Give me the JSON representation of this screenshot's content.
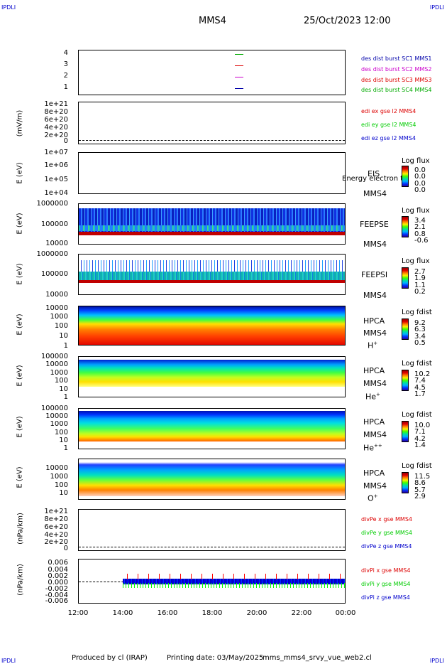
{
  "corners": {
    "tl": "IPDLI",
    "tr": "IPDLI",
    "bl": "IPDLI",
    "br": "IPDLI"
  },
  "header": {
    "spacecraft": "MMS4",
    "datetime": "25/Oct/2023 12:00"
  },
  "colors": {
    "mms1": "#0000aa",
    "mms2": "#cc00cc",
    "mms3": "#dd0000",
    "mms4": "#00aa00",
    "x": "#dd0000",
    "y": "#00cc00",
    "z": "#0000cc"
  },
  "panels": {
    "p1": {
      "ticks": [
        "4",
        "3",
        "2",
        "1"
      ],
      "legend": [
        "des dist burst SC1 MMS1",
        "des dist burst SC2 MMS2",
        "des dist burst SC3 MMS3",
        "des dist burst SC4 MMS4"
      ]
    },
    "p2": {
      "ylabel": "(mV/m)",
      "ticks": [
        "1e+21",
        "8e+20",
        "6e+20",
        "4e+20",
        "2e+20",
        "0"
      ],
      "legend": [
        "edi ex gse l2 MMS4",
        "edi ey gse l2 MMS4",
        "edi ez gse l2 MMS4"
      ]
    },
    "p3": {
      "ylabel": "E (eV)",
      "ticks": [
        "1e+07",
        "1e+06",
        "1e+05",
        "1e+04"
      ],
      "inst": "EIS",
      "sc": "MMS4",
      "overlap": "Energy electron to",
      "cbtitle": "Log flux",
      "cbvals": [
        "0.0",
        "0.0",
        "0.0",
        "0.0"
      ]
    },
    "p4": {
      "ylabel": "E (eV)",
      "ticks": [
        "1000000",
        "100000",
        "10000"
      ],
      "inst": "FEEPSE",
      "sc": "MMS4",
      "cbtitle": "Log flux",
      "cbvals": [
        "3.4",
        "2.1",
        "0.8",
        "-0.6"
      ]
    },
    "p5": {
      "ylabel": "E (eV)",
      "ticks": [
        "1000000",
        "100000",
        "10000"
      ],
      "inst": "FEEPSI",
      "sc": "MMS4",
      "cbtitle": "Log flux",
      "cbvals": [
        "2.7",
        "1.9",
        "1.1",
        "0.2"
      ]
    },
    "p6": {
      "ylabel": "E (eV)",
      "ticks": [
        "10000",
        "1000",
        "100",
        "10",
        "1"
      ],
      "inst": "HPCA",
      "sc": "MMS4",
      "species": "H",
      "charge": "+",
      "cbtitle": "Log fdist",
      "cbvals": [
        "9.2",
        "6.3",
        "3.4",
        "0.5"
      ]
    },
    "p7": {
      "ylabel": "E (eV)",
      "ticks": [
        "100000",
        "10000",
        "1000",
        "100",
        "10",
        "1"
      ],
      "inst": "HPCA",
      "sc": "MMS4",
      "species": "He",
      "charge": "+",
      "cbtitle": "Log fdist",
      "cbvals": [
        "10.2",
        "7.4",
        "4.5",
        "1.7"
      ]
    },
    "p8": {
      "ylabel": "E (eV)",
      "ticks": [
        "100000",
        "10000",
        "1000",
        "100",
        "10",
        "1"
      ],
      "inst": "HPCA",
      "sc": "MMS4",
      "species": "He",
      "charge": "++",
      "cbtitle": "Log fdist",
      "cbvals": [
        "10.0",
        "7.1",
        "4.2",
        "1.4"
      ]
    },
    "p9": {
      "ylabel": "E (eV)",
      "ticks": [
        "10000",
        "1000",
        "100",
        "10"
      ],
      "inst": "HPCA",
      "sc": "MMS4",
      "species": "O",
      "charge": "+",
      "cbtitle": "Log fdist",
      "cbvals": [
        "11.5",
        "8.6",
        "5.7",
        "2.9"
      ]
    },
    "p10": {
      "ylabel": "(nPa/km)",
      "ticks": [
        "1e+21",
        "8e+20",
        "6e+20",
        "4e+20",
        "2e+20",
        "0"
      ],
      "legend": [
        "divPe x gse MMS4",
        "divPe y gse MMS4",
        "divPe z gse MMS4"
      ]
    },
    "p11": {
      "ylabel": "(nPa/km)",
      "ticks": [
        "0.006",
        "0.004",
        "0.002",
        "0.000",
        "-0.002",
        "-0.004",
        "-0.006"
      ],
      "legend": [
        "divPi x gse MMS4",
        "divPi y gse MMS4",
        "divPi z gse MMS4"
      ]
    }
  },
  "xaxis": {
    "labels": [
      "12:00",
      "14:00",
      "16:00",
      "18:00",
      "20:00",
      "22:00",
      "00:00"
    ]
  },
  "footer": {
    "produced": "Produced by cl (IRAP)",
    "printed": "Printing date: 03/May/2025",
    "script": "mms_mms4_srvy_vue_web2.cl"
  },
  "chart_data": {
    "type": "spectrogram",
    "title": "MMS4",
    "xlabel": "",
    "x": [
      "12:00",
      "14:00",
      "16:00",
      "18:00",
      "20:00",
      "22:00",
      "00:00"
    ],
    "panels": [
      {
        "name": "des dist burst",
        "type": "line",
        "ylim": [
          0.5,
          4.5
        ]
      },
      {
        "name": "edi e gse l2",
        "ylabel": "(mV/m)",
        "type": "line",
        "ylim": [
          0,
          1e+21
        ]
      },
      {
        "name": "EIS",
        "ylabel": "E (eV)",
        "type": "heatmap",
        "ylim": [
          10000.0,
          10000000.0
        ],
        "scale": "log",
        "colorbar": [
          0.0,
          0.0,
          0.0,
          0.0
        ]
      },
      {
        "name": "FEEPSE",
        "ylabel": "E (eV)",
        "type": "heatmap",
        "ylim": [
          10000.0,
          1000000.0
        ],
        "scale": "log",
        "colorbar": [
          3.4,
          2.1,
          0.8,
          -0.6
        ]
      },
      {
        "name": "FEEPSI",
        "ylabel": "E (eV)",
        "type": "heatmap",
        "ylim": [
          10000.0,
          1000000.0
        ],
        "scale": "log",
        "colorbar": [
          2.7,
          1.9,
          1.1,
          0.2
        ]
      },
      {
        "name": "HPCA H+",
        "ylabel": "E (eV)",
        "type": "heatmap",
        "ylim": [
          1,
          10000.0
        ],
        "scale": "log",
        "colorbar": [
          9.2,
          6.3,
          3.4,
          0.5
        ]
      },
      {
        "name": "HPCA He+",
        "ylabel": "E (eV)",
        "type": "heatmap",
        "ylim": [
          1,
          100000.0
        ],
        "scale": "log",
        "colorbar": [
          10.2,
          7.4,
          4.5,
          1.7
        ]
      },
      {
        "name": "HPCA He++",
        "ylabel": "E (eV)",
        "type": "heatmap",
        "ylim": [
          1,
          100000.0
        ],
        "scale": "log",
        "colorbar": [
          10.0,
          7.1,
          4.2,
          1.4
        ]
      },
      {
        "name": "HPCA O+",
        "ylabel": "E (eV)",
        "type": "heatmap",
        "ylim": [
          1,
          100000.0
        ],
        "scale": "log",
        "colorbar": [
          11.5,
          8.6,
          5.7,
          2.9
        ]
      },
      {
        "name": "divPe gse",
        "ylabel": "(nPa/km)",
        "type": "line",
        "ylim": [
          0,
          1e+21
        ]
      },
      {
        "name": "divPi gse",
        "ylabel": "(nPa/km)",
        "type": "line",
        "ylim": [
          -0.006,
          0.006
        ]
      }
    ]
  }
}
